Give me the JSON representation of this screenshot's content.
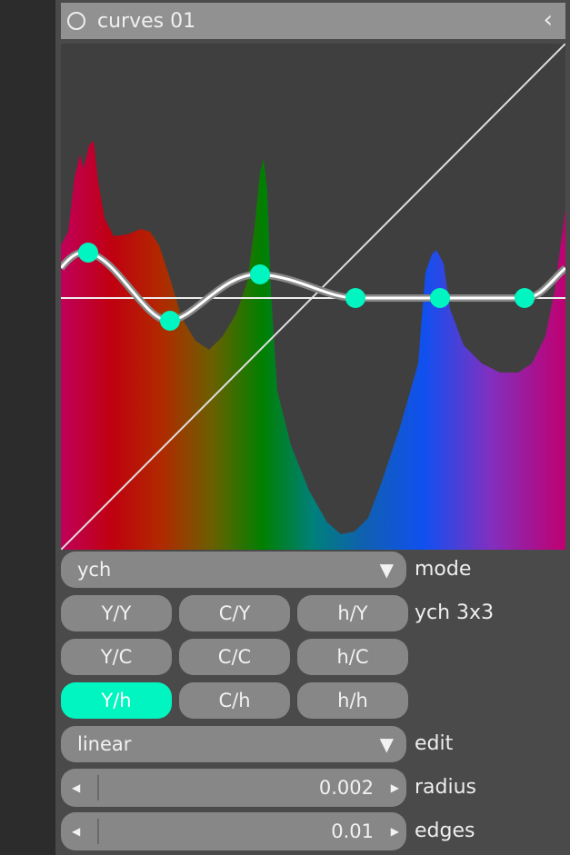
{
  "header": {
    "title": "curves 01",
    "power_icon": "circle-power-icon",
    "collapse_icon": "chevron-left-icon"
  },
  "graph": {
    "node_color": "#00f5c0"
  },
  "mode": {
    "value": "ych",
    "label": "mode"
  },
  "channels": {
    "label": "ych 3x3",
    "buttons": [
      [
        "Y/Y",
        "C/Y",
        "h/Y"
      ],
      [
        "Y/C",
        "C/C",
        "h/C"
      ],
      [
        "Y/h",
        "C/h",
        "h/h"
      ]
    ],
    "active": "Y/h",
    "active_color": "#00f5c0"
  },
  "edit": {
    "value": "linear",
    "label": "edit"
  },
  "radius": {
    "value": "0.002",
    "label": "radius"
  },
  "edges": {
    "value": "0.01",
    "label": "edges"
  }
}
